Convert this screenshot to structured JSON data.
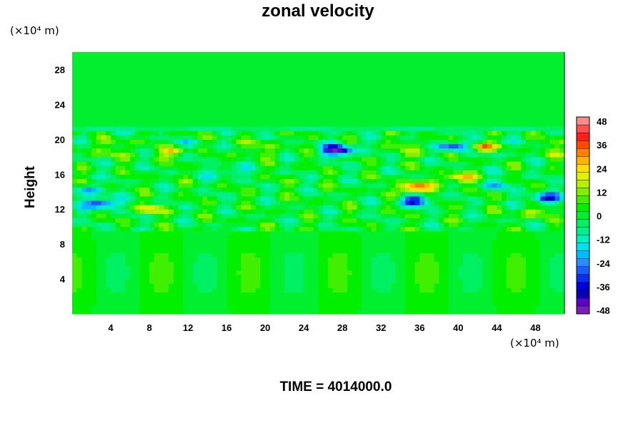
{
  "chart_data": {
    "type": "heatmap",
    "title": "zonal velocity",
    "ylabel": "Height",
    "x_unit": "(×10⁴ m)",
    "y_unit": "(×10⁴ m)",
    "x_ticks": [
      4,
      8,
      12,
      16,
      20,
      24,
      28,
      32,
      36,
      40,
      44,
      48
    ],
    "y_ticks": [
      4,
      8,
      12,
      16,
      20,
      24,
      28
    ],
    "xlim": [
      0,
      51
    ],
    "ylim": [
      0,
      30
    ],
    "colorbar": {
      "tick_labels": [
        48,
        36,
        24,
        12,
        0,
        -12,
        -24,
        -36,
        -48
      ],
      "range": [
        -52,
        52
      ]
    },
    "anomalies": [
      {
        "x": 3.0,
        "y": 12.7,
        "v": -40
      },
      {
        "x": 10.5,
        "y": 18.6,
        "v": 28
      },
      {
        "x": 8.0,
        "y": 12.0,
        "v": 20
      },
      {
        "x": 27.5,
        "y": 18.8,
        "v": -40
      },
      {
        "x": 16.0,
        "y": 16.3,
        "v": -18
      },
      {
        "x": 35.5,
        "y": 14.5,
        "v": 44
      },
      {
        "x": 35.5,
        "y": 13.0,
        "v": -40
      },
      {
        "x": 39.5,
        "y": 19.2,
        "v": -36
      },
      {
        "x": 42.5,
        "y": 19.1,
        "v": 40
      },
      {
        "x": 40.0,
        "y": 15.6,
        "v": 30
      },
      {
        "x": 49.0,
        "y": 13.3,
        "v": -38
      },
      {
        "x": 48.0,
        "y": 11.7,
        "v": 16
      },
      {
        "x": 2.0,
        "y": 14.2,
        "v": -20
      },
      {
        "x": 44.0,
        "y": 14.8,
        "v": -16
      }
    ],
    "colormap": [
      "#7a1fb5",
      "#5a00c8",
      "#0a00b8",
      "#0000dc",
      "#0a2cf0",
      "#1a5cff",
      "#2c8cff",
      "#00bcff",
      "#00e0ee",
      "#00f0c0",
      "#00f090",
      "#00f064",
      "#00f030",
      "#00f000",
      "#40f000",
      "#80f000",
      "#b4f000",
      "#e0f000",
      "#ffe000",
      "#ffb400",
      "#ff8000",
      "#ff4a00",
      "#ff1e1e",
      "#ff5050",
      "#ff8c8c"
    ]
  },
  "time_label": "TIME = 4014000.0"
}
